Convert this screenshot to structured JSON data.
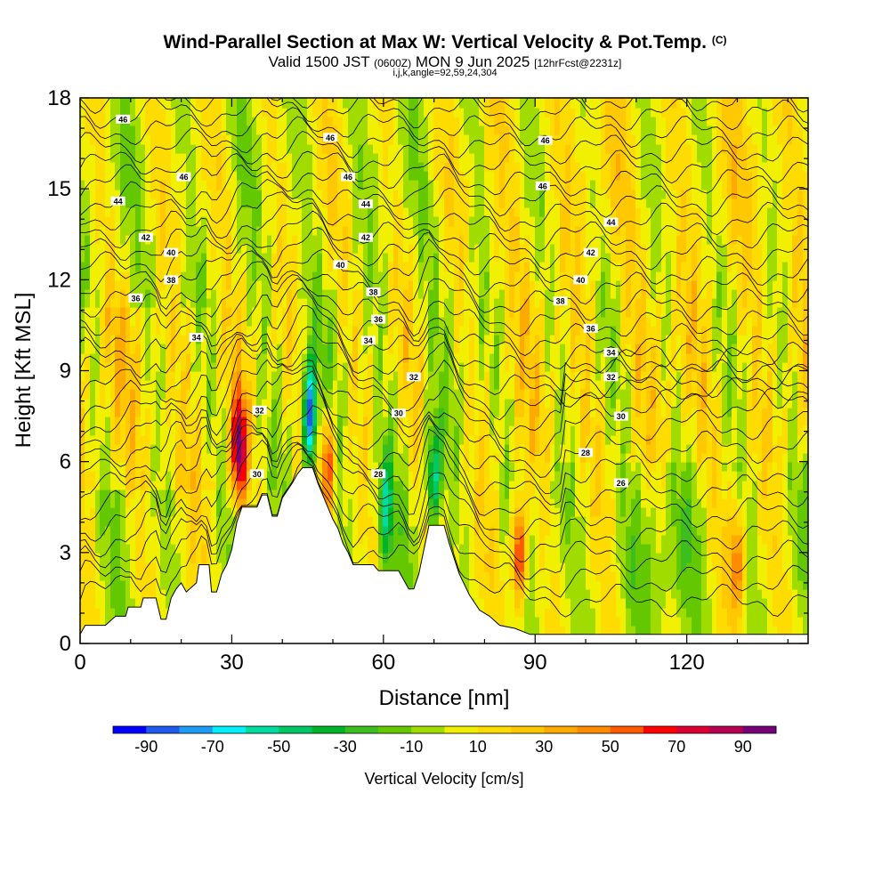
{
  "chart_data": {
    "type": "heatmap",
    "title": {
      "main": "Wind-Parallel Section at Max W: Vertical Velocity & Pot.Temp.",
      "copyright": "(C)",
      "valid_prefix": "Valid 1500 JST",
      "valid_utc": "(0600Z)",
      "valid_date": "MON 9 Jun 2025",
      "forecast": "[12hrFcst@2231z]",
      "subtitle2": "i,j,k,angle=92,59,24,304"
    },
    "xlabel": "Distance [nm]",
    "ylabel": "Height [Kft MSL]",
    "xlim": [
      0,
      144
    ],
    "ylim": [
      0,
      18
    ],
    "x_ticks": [
      "0",
      "30",
      "60",
      "90",
      "120"
    ],
    "y_ticks": [
      "0",
      "3",
      "6",
      "9",
      "12",
      "15",
      "18"
    ],
    "colorbar": {
      "label": "Vertical Velocity [cm/s]",
      "tick_labels": [
        "-90",
        "-70",
        "-50",
        "-30",
        "-10",
        "10",
        "30",
        "50",
        "70",
        "90"
      ],
      "bounds": [
        -100,
        -90,
        -80,
        -70,
        -60,
        -50,
        -40,
        -30,
        -20,
        -10,
        0,
        10,
        20,
        30,
        40,
        50,
        60,
        70,
        80,
        90,
        100
      ],
      "colors": [
        "#0000ff",
        "#1e5af0",
        "#1e9bf5",
        "#00f0ff",
        "#00dca0",
        "#00c864",
        "#00b428",
        "#3cbe1e",
        "#64c800",
        "#a0dc00",
        "#f0f000",
        "#ffdc00",
        "#ffc800",
        "#ffaa00",
        "#ff8c00",
        "#ff5a00",
        "#ff0000",
        "#dc0032",
        "#b40050",
        "#780078"
      ]
    },
    "terrain": [
      [
        0,
        0.3
      ],
      [
        1,
        0.6
      ],
      [
        5,
        0.6
      ],
      [
        7,
        0.9
      ],
      [
        9,
        0.9
      ],
      [
        9.5,
        1.2
      ],
      [
        12,
        1.2
      ],
      [
        12.5,
        1.5
      ],
      [
        15,
        1.5
      ],
      [
        16,
        0.8
      ],
      [
        17,
        0.8
      ],
      [
        18,
        1.5
      ],
      [
        19,
        1.8
      ],
      [
        20,
        2.0
      ],
      [
        21,
        1.7
      ],
      [
        23,
        2.0
      ],
      [
        23.5,
        2.6
      ],
      [
        25.5,
        2.6
      ],
      [
        26,
        1.7
      ],
      [
        27,
        1.7
      ],
      [
        28,
        2.3
      ],
      [
        29,
        2.6
      ],
      [
        30,
        3.1
      ],
      [
        31,
        4.0
      ],
      [
        32,
        4.5
      ],
      [
        35,
        4.5
      ],
      [
        36,
        4.9
      ],
      [
        37,
        4.9
      ],
      [
        38,
        4.2
      ],
      [
        39,
        4.2
      ],
      [
        40,
        4.8
      ],
      [
        42,
        5.3
      ],
      [
        43,
        5.6
      ],
      [
        44,
        5.8
      ],
      [
        46,
        5.8
      ],
      [
        47,
        5.3
      ],
      [
        49,
        4.5
      ],
      [
        50,
        4.1
      ],
      [
        51,
        3.8
      ],
      [
        52,
        3.3
      ],
      [
        53,
        3.0
      ],
      [
        54,
        2.6
      ],
      [
        58,
        2.6
      ],
      [
        59,
        2.4
      ],
      [
        63,
        2.4
      ],
      [
        64,
        2.1
      ],
      [
        65,
        1.8
      ],
      [
        66,
        1.8
      ],
      [
        67,
        2.3
      ],
      [
        68,
        3.1
      ],
      [
        69,
        3.9
      ],
      [
        72,
        3.9
      ],
      [
        73,
        3.3
      ],
      [
        75,
        2.3
      ],
      [
        77,
        1.6
      ],
      [
        79,
        1.1
      ],
      [
        81,
        0.9
      ],
      [
        83,
        0.6
      ],
      [
        86,
        0.5
      ],
      [
        89,
        0.3
      ],
      [
        144,
        0.3
      ]
    ],
    "velocity_features": [
      {
        "x": 31.5,
        "y": 6.5,
        "value": 95
      },
      {
        "x": 45.5,
        "y": 7.5,
        "value": -90
      },
      {
        "x": 70,
        "y": 5.5,
        "value": -60
      },
      {
        "x": 60.5,
        "y": 4.5,
        "value": -50
      },
      {
        "x": 87,
        "y": 3.0,
        "value": 80
      },
      {
        "x": 49,
        "y": 6.0,
        "value": 60
      },
      {
        "x": 130,
        "y": 2.8,
        "value": 40
      }
    ],
    "isentropes": [
      {
        "value": "26",
        "label_x": 107,
        "label_y": 5.3
      },
      {
        "value": "28",
        "label_x": 100,
        "label_y": 6.3
      },
      {
        "value": "28",
        "label_x": 59,
        "label_y": 5.6
      },
      {
        "value": "30",
        "label_x": 107,
        "label_y": 7.5
      },
      {
        "value": "30",
        "label_x": 35,
        "label_y": 5.6
      },
      {
        "value": "30",
        "label_x": 63,
        "label_y": 7.6
      },
      {
        "value": "32",
        "label_x": 105,
        "label_y": 8.8
      },
      {
        "value": "32",
        "label_x": 35.5,
        "label_y": 7.7
      },
      {
        "value": "32",
        "label_x": 66,
        "label_y": 8.8
      },
      {
        "value": "34",
        "label_x": 105,
        "label_y": 9.6
      },
      {
        "value": "34",
        "label_x": 23,
        "label_y": 10.1
      },
      {
        "value": "34",
        "label_x": 57,
        "label_y": 10.0
      },
      {
        "value": "36",
        "label_x": 101,
        "label_y": 10.4
      },
      {
        "value": "36",
        "label_x": 11,
        "label_y": 11.4
      },
      {
        "value": "36",
        "label_x": 59,
        "label_y": 10.7
      },
      {
        "value": "38",
        "label_x": 95,
        "label_y": 11.3
      },
      {
        "value": "38",
        "label_x": 18,
        "label_y": 12.0
      },
      {
        "value": "38",
        "label_x": 58,
        "label_y": 11.6
      },
      {
        "value": "40",
        "label_x": 99,
        "label_y": 12.0
      },
      {
        "value": "40",
        "label_x": 18,
        "label_y": 12.9
      },
      {
        "value": "40",
        "label_x": 51.5,
        "label_y": 12.5
      },
      {
        "value": "42",
        "label_x": 101,
        "label_y": 12.9
      },
      {
        "value": "42",
        "label_x": 13,
        "label_y": 13.4
      },
      {
        "value": "42",
        "label_x": 56.5,
        "label_y": 13.4
      },
      {
        "value": "44",
        "label_x": 105,
        "label_y": 13.9
      },
      {
        "value": "44",
        "label_x": 7.5,
        "label_y": 14.6
      },
      {
        "value": "44",
        "label_x": 56.5,
        "label_y": 14.5
      },
      {
        "value": "46",
        "label_x": 91.5,
        "label_y": 15.1
      },
      {
        "value": "46",
        "label_x": 20.5,
        "label_y": 15.4
      },
      {
        "value": "46",
        "label_x": 53,
        "label_y": 15.4
      },
      {
        "value": "46",
        "label_x": 92,
        "label_y": 16.6
      },
      {
        "value": "46",
        "label_x": 8.5,
        "label_y": 17.3
      },
      {
        "value": "46",
        "label_x": 49.5,
        "label_y": 16.7
      }
    ]
  }
}
